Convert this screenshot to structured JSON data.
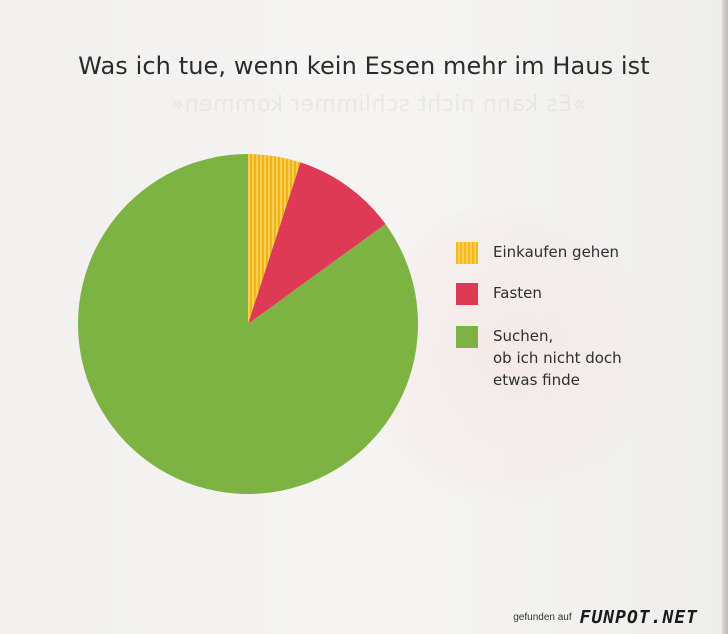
{
  "chart_data": {
    "type": "pie",
    "title": "Was ich tue, wenn kein Essen mehr im Haus ist",
    "categories": [
      "Einkaufen gehen",
      "Fasten",
      "Suchen,\nob ich nicht doch\netwas finde"
    ],
    "values": [
      5,
      10,
      85
    ],
    "colors": [
      "#f4b91d",
      "#de3a55",
      "#7cb342"
    ],
    "start_angle_deg": 0,
    "direction": "clockwise",
    "legend_position": "right"
  },
  "background_text": "»Es kann nicht schlimmer kommen«",
  "watermark": {
    "prefix": "gefunden auf",
    "logo": "FUNPOT.NET"
  }
}
